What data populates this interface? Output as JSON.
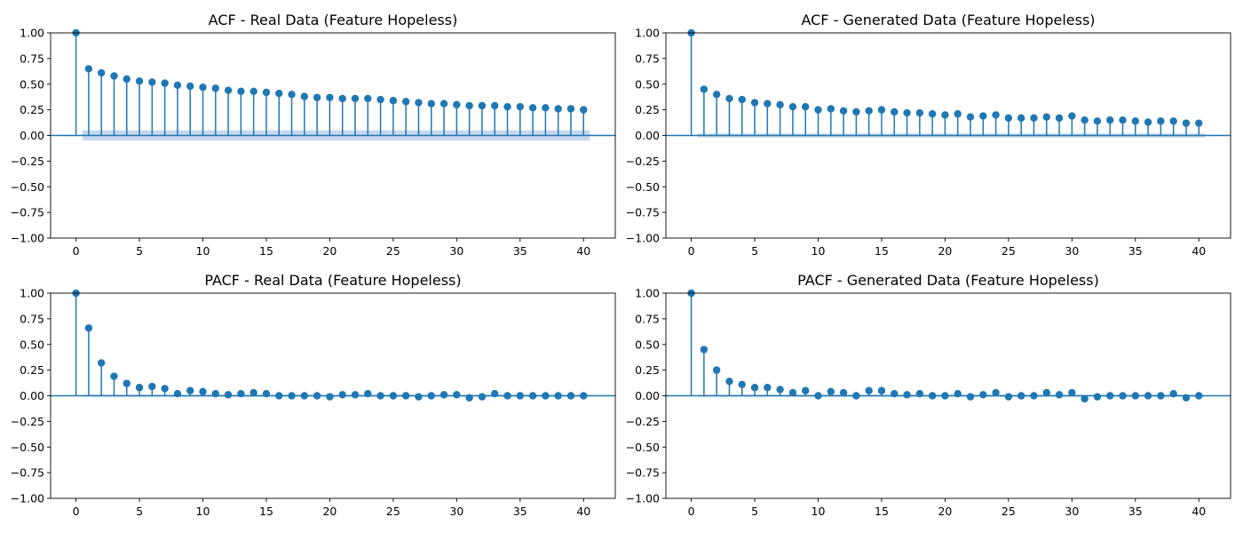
{
  "chart_data": [
    {
      "type": "stem",
      "title": "ACF - Real Data (Feature Hopeless)",
      "xlabel": "",
      "ylabel": "",
      "xlim": [
        -2,
        42.5
      ],
      "ylim": [
        -1.0,
        1.0
      ],
      "xticks": [
        "0",
        "5",
        "10",
        "15",
        "20",
        "25",
        "30",
        "35",
        "40"
      ],
      "yticks": [
        "1.00",
        "0.75",
        "0.50",
        "0.25",
        "0.00",
        "−0.25",
        "−0.50",
        "−0.75",
        "−1.00"
      ],
      "grid": false,
      "confidence_band": 0.05,
      "x": [
        0,
        1,
        2,
        3,
        4,
        5,
        6,
        7,
        8,
        9,
        10,
        11,
        12,
        13,
        14,
        15,
        16,
        17,
        18,
        19,
        20,
        21,
        22,
        23,
        24,
        25,
        26,
        27,
        28,
        29,
        30,
        31,
        32,
        33,
        34,
        35,
        36,
        37,
        38,
        39,
        40
      ],
      "values": [
        1.0,
        0.65,
        0.61,
        0.58,
        0.55,
        0.53,
        0.52,
        0.51,
        0.49,
        0.48,
        0.47,
        0.46,
        0.44,
        0.43,
        0.43,
        0.42,
        0.41,
        0.4,
        0.38,
        0.37,
        0.37,
        0.36,
        0.36,
        0.36,
        0.35,
        0.34,
        0.33,
        0.32,
        0.31,
        0.31,
        0.3,
        0.29,
        0.29,
        0.29,
        0.28,
        0.28,
        0.27,
        0.27,
        0.26,
        0.26,
        0.25
      ]
    },
    {
      "type": "stem",
      "title": "ACF - Generated Data (Feature Hopeless)",
      "xlabel": "",
      "ylabel": "",
      "xlim": [
        -2,
        42.5
      ],
      "ylim": [
        -1.0,
        1.0
      ],
      "xticks": [
        "0",
        "5",
        "10",
        "15",
        "20",
        "25",
        "30",
        "35",
        "40"
      ],
      "yticks": [
        "1.00",
        "0.75",
        "0.50",
        "0.25",
        "0.00",
        "−0.25",
        "−0.50",
        "−0.75",
        "−1.00"
      ],
      "grid": false,
      "confidence_band": 0.02,
      "x": [
        0,
        1,
        2,
        3,
        4,
        5,
        6,
        7,
        8,
        9,
        10,
        11,
        12,
        13,
        14,
        15,
        16,
        17,
        18,
        19,
        20,
        21,
        22,
        23,
        24,
        25,
        26,
        27,
        28,
        29,
        30,
        31,
        32,
        33,
        34,
        35,
        36,
        37,
        38,
        39,
        40
      ],
      "values": [
        1.0,
        0.45,
        0.4,
        0.36,
        0.35,
        0.32,
        0.31,
        0.3,
        0.28,
        0.28,
        0.25,
        0.26,
        0.24,
        0.23,
        0.24,
        0.25,
        0.23,
        0.22,
        0.22,
        0.21,
        0.2,
        0.21,
        0.18,
        0.19,
        0.2,
        0.17,
        0.17,
        0.17,
        0.18,
        0.17,
        0.19,
        0.15,
        0.14,
        0.15,
        0.15,
        0.14,
        0.13,
        0.14,
        0.14,
        0.12,
        0.12
      ]
    },
    {
      "type": "stem",
      "title": "PACF - Real Data (Feature Hopeless)",
      "xlabel": "",
      "ylabel": "",
      "xlim": [
        -2,
        42.5
      ],
      "ylim": [
        -1.0,
        1.0
      ],
      "xticks": [
        "0",
        "5",
        "10",
        "15",
        "20",
        "25",
        "30",
        "35",
        "40"
      ],
      "yticks": [
        "1.00",
        "0.75",
        "0.50",
        "0.25",
        "0.00",
        "−0.25",
        "−0.50",
        "−0.75",
        "−1.00"
      ],
      "grid": false,
      "confidence_band": 0.01,
      "x": [
        0,
        1,
        2,
        3,
        4,
        5,
        6,
        7,
        8,
        9,
        10,
        11,
        12,
        13,
        14,
        15,
        16,
        17,
        18,
        19,
        20,
        21,
        22,
        23,
        24,
        25,
        26,
        27,
        28,
        29,
        30,
        31,
        32,
        33,
        34,
        35,
        36,
        37,
        38,
        39,
        40
      ],
      "values": [
        1.0,
        0.66,
        0.32,
        0.19,
        0.12,
        0.08,
        0.09,
        0.07,
        0.02,
        0.05,
        0.04,
        0.02,
        0.01,
        0.02,
        0.03,
        0.02,
        0.0,
        0.0,
        0.0,
        0.0,
        -0.01,
        0.01,
        0.01,
        0.02,
        0.0,
        0.0,
        0.0,
        -0.01,
        0.0,
        0.01,
        0.01,
        -0.02,
        -0.01,
        0.02,
        0.0,
        0.0,
        0.0,
        0.0,
        0.0,
        0.0,
        0.0
      ]
    },
    {
      "type": "stem",
      "title": "PACF - Generated Data (Feature Hopeless)",
      "xlabel": "",
      "ylabel": "",
      "xlim": [
        -2,
        42.5
      ],
      "ylim": [
        -1.0,
        1.0
      ],
      "xticks": [
        "0",
        "5",
        "10",
        "15",
        "20",
        "25",
        "30",
        "35",
        "40"
      ],
      "yticks": [
        "1.00",
        "0.75",
        "0.50",
        "0.25",
        "0.00",
        "−0.25",
        "−0.50",
        "−0.75",
        "−1.00"
      ],
      "grid": false,
      "confidence_band": 0.01,
      "x": [
        0,
        1,
        2,
        3,
        4,
        5,
        6,
        7,
        8,
        9,
        10,
        11,
        12,
        13,
        14,
        15,
        16,
        17,
        18,
        19,
        20,
        21,
        22,
        23,
        24,
        25,
        26,
        27,
        28,
        29,
        30,
        31,
        32,
        33,
        34,
        35,
        36,
        37,
        38,
        39,
        40
      ],
      "values": [
        1.0,
        0.45,
        0.25,
        0.14,
        0.11,
        0.08,
        0.08,
        0.06,
        0.03,
        0.05,
        0.0,
        0.04,
        0.03,
        0.0,
        0.05,
        0.05,
        0.02,
        0.01,
        0.02,
        0.0,
        0.0,
        0.02,
        -0.01,
        0.01,
        0.03,
        -0.01,
        0.0,
        0.0,
        0.03,
        0.01,
        0.03,
        -0.03,
        -0.01,
        0.0,
        0.0,
        0.0,
        0.0,
        0.0,
        0.02,
        -0.02,
        0.0
      ]
    }
  ],
  "colors": {
    "stem": "#1f77b4",
    "band": "#aec7e8",
    "axes": "#000000",
    "background": "#ffffff"
  }
}
